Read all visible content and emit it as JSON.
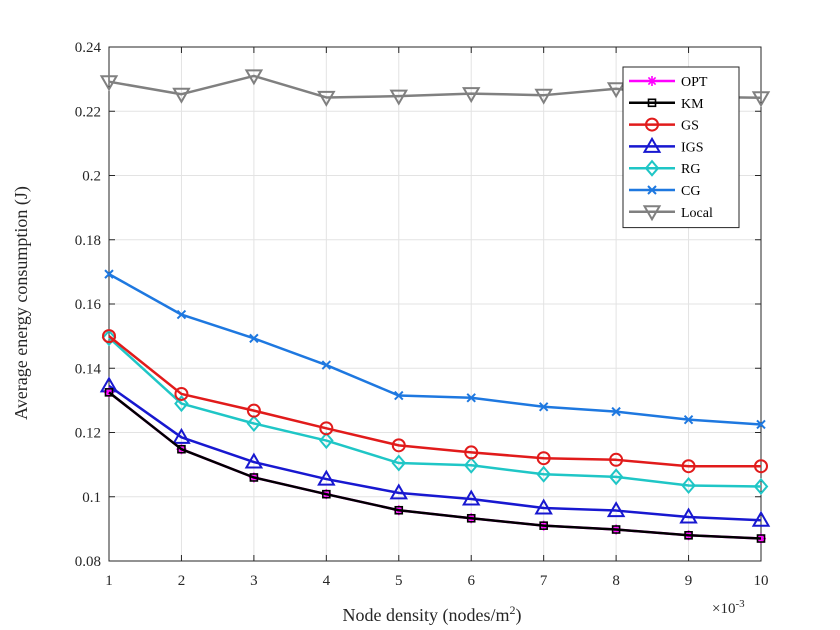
{
  "chart_data": {
    "type": "line",
    "title": "",
    "xlabel": "Node density (nodes/m",
    "xlabel_sup": "2",
    "xlabel_close": ")",
    "ylabel": "Average energy consumption (J)",
    "x_multiplier_base": "×10",
    "x_multiplier_exp": "-3",
    "x": [
      1,
      2,
      3,
      4,
      5,
      6,
      7,
      8,
      9,
      10
    ],
    "xlim": [
      1,
      10
    ],
    "ylim": [
      0.08,
      0.24
    ],
    "xticks": [
      1,
      2,
      3,
      4,
      5,
      6,
      7,
      8,
      9,
      10
    ],
    "xtick_labels": [
      "1",
      "2",
      "3",
      "4",
      "5",
      "6",
      "7",
      "8",
      "9",
      "10"
    ],
    "yticks": [
      0.08,
      0.1,
      0.12,
      0.14,
      0.16,
      0.18,
      0.2,
      0.22,
      0.24
    ],
    "ytick_labels": [
      "0.08",
      "0.1",
      "0.12",
      "0.14",
      "0.16",
      "0.18",
      "0.2",
      "0.22",
      "0.24"
    ],
    "grid": true,
    "legend_position": "top-right",
    "series": [
      {
        "name": "OPT",
        "color": "#ff00ff",
        "marker": "asterisk",
        "values": [
          0.1325,
          0.1148,
          0.106,
          0.1008,
          0.0958,
          0.0933,
          0.091,
          0.0898,
          0.088,
          0.087
        ]
      },
      {
        "name": "KM",
        "color": "#000000",
        "marker": "square",
        "values": [
          0.1325,
          0.1148,
          0.106,
          0.1008,
          0.0958,
          0.0933,
          0.091,
          0.0898,
          0.088,
          0.087
        ]
      },
      {
        "name": "GS",
        "color": "#e11b1b",
        "marker": "circle",
        "values": [
          0.15,
          0.132,
          0.1268,
          0.1213,
          0.116,
          0.1138,
          0.112,
          0.1115,
          0.1095,
          0.1095
        ]
      },
      {
        "name": "IGS",
        "color": "#1818d0",
        "marker": "triangle-up",
        "values": [
          0.1345,
          0.1185,
          0.1108,
          0.1055,
          0.1012,
          0.0993,
          0.0965,
          0.0957,
          0.0937,
          0.0927
        ]
      },
      {
        "name": "RG",
        "color": "#1fc6c6",
        "marker": "diamond",
        "values": [
          0.1495,
          0.129,
          0.1228,
          0.1175,
          0.1105,
          0.1098,
          0.107,
          0.1062,
          0.1035,
          0.1032
        ]
      },
      {
        "name": "CG",
        "color": "#1e78e0",
        "marker": "x",
        "values": [
          0.1693,
          0.1567,
          0.1493,
          0.141,
          0.1315,
          0.1308,
          0.128,
          0.1265,
          0.124,
          0.1225
        ]
      },
      {
        "name": "Local",
        "color": "#808080",
        "marker": "triangle-down",
        "values": [
          0.2292,
          0.2253,
          0.231,
          0.2243,
          0.2247,
          0.2255,
          0.225,
          0.227,
          0.2245,
          0.2242
        ]
      }
    ]
  }
}
